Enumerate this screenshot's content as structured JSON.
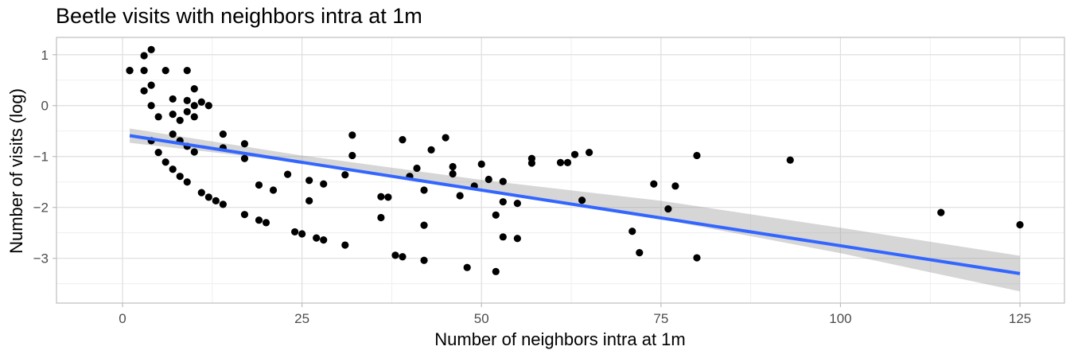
{
  "chart_data": {
    "type": "scatter",
    "title": "Beetle visits with neighbors intra at 1m",
    "xlabel": "Number of neighbors intra at 1m",
    "ylabel": "Number of visits (log)",
    "xlim": [
      -9.2,
      131.2
    ],
    "ylim": [
      -3.88,
      1.34
    ],
    "x_ticks": [
      0,
      25,
      50,
      75,
      100,
      125
    ],
    "y_ticks": [
      -3,
      -2,
      -1,
      0,
      1
    ],
    "x_tick_labels": [
      "0",
      "25",
      "50",
      "75",
      "100",
      "125"
    ],
    "y_tick_labels": [
      "−3",
      "−2",
      "−1",
      "0",
      "1"
    ],
    "grid": true,
    "legend": "none",
    "colors": {
      "points": "#000000",
      "fit_line": "#3366ff",
      "ribbon": "#999999",
      "grid": "#dedede",
      "border": "#bdbdbd"
    },
    "series": [
      {
        "kind": "points",
        "x": [
          1,
          1,
          3,
          3,
          3,
          4,
          4,
          4,
          4,
          5,
          5,
          6,
          6,
          7,
          7,
          7,
          7,
          8,
          8,
          8,
          9,
          9,
          9,
          9,
          9,
          10,
          10,
          10,
          10,
          11,
          11,
          12,
          12,
          13,
          14,
          14,
          14,
          17,
          17,
          17,
          19,
          19,
          20,
          21,
          23,
          24,
          25,
          26,
          26,
          27,
          28,
          28,
          31,
          31,
          32,
          32,
          36,
          36,
          37,
          38,
          39,
          39,
          40,
          41,
          42,
          42,
          42,
          43,
          45,
          46,
          46,
          47,
          48,
          49,
          50,
          51,
          52,
          52,
          53,
          53,
          53,
          55,
          55,
          57,
          57,
          61,
          62,
          63,
          64,
          65,
          71,
          72,
          74,
          76,
          77,
          80,
          80,
          93,
          114,
          125
        ],
        "y": [
          0.69,
          0.69,
          0.98,
          0.69,
          0.29,
          1.1,
          0.4,
          0.0,
          -0.69,
          -0.22,
          -0.92,
          0.69,
          -1.11,
          0.13,
          -0.17,
          -0.56,
          -1.25,
          -0.29,
          -0.69,
          -1.39,
          0.69,
          0.1,
          -0.12,
          -0.8,
          -1.5,
          0.33,
          0.0,
          -0.22,
          -0.91,
          0.07,
          -1.71,
          0.0,
          -1.8,
          -1.87,
          -0.56,
          -0.83,
          -1.94,
          -0.75,
          -1.04,
          -2.14,
          -1.56,
          -2.25,
          -2.3,
          -1.66,
          -1.35,
          -2.48,
          -2.52,
          -1.47,
          -1.87,
          -2.6,
          -1.54,
          -2.64,
          -1.36,
          -2.74,
          -0.58,
          -0.98,
          -1.79,
          -2.2,
          -1.8,
          -2.94,
          -0.67,
          -2.97,
          -1.39,
          -1.23,
          -1.66,
          -2.35,
          -3.04,
          -0.87,
          -0.63,
          -1.2,
          -1.34,
          -1.77,
          -3.18,
          -1.58,
          -1.15,
          -1.45,
          -2.15,
          -3.26,
          -1.49,
          -1.89,
          -2.58,
          -1.92,
          -2.61,
          -1.04,
          -1.13,
          -1.12,
          -1.12,
          -0.96,
          -1.86,
          -0.92,
          -2.47,
          -2.89,
          -1.54,
          -2.03,
          -1.58,
          -0.98,
          -2.99,
          -1.07,
          -2.1,
          -2.34
        ]
      },
      {
        "kind": "linear_fit",
        "x": [
          1,
          125
        ],
        "y": [
          -0.59,
          -3.3
        ]
      },
      {
        "kind": "confidence_band",
        "x": [
          1,
          25,
          50,
          75,
          100,
          125
        ],
        "upper": [
          -0.45,
          -0.98,
          -1.46,
          -1.87,
          -2.4,
          -2.95
        ],
        "lower": [
          -0.73,
          -1.12,
          -1.63,
          -2.23,
          -2.9,
          -3.65
        ]
      }
    ]
  }
}
